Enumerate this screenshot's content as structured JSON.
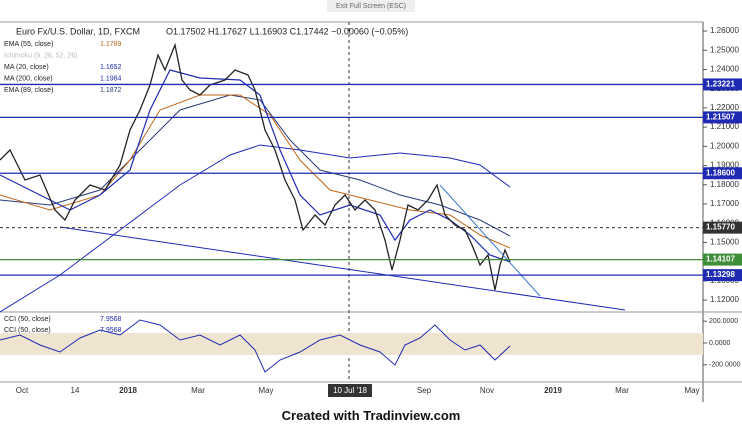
{
  "window": {
    "banner": "Exit Full Screen (ESC)"
  },
  "header": {
    "symbol": "Euro Fx/U.S. Dollar, 1D, FXCM",
    "ohlc": "O1.17502 H1.17627 L1.16903 C1.17442 −0.00060 (−0.05%)"
  },
  "indicators": [
    {
      "name": "EMA (55, close)",
      "value": "1.1789",
      "color": "#c0661a"
    },
    {
      "name": "Ichimoku (9, 26, 52, 26)",
      "color": "#b0b0b0"
    },
    {
      "name": "MA (20, close)",
      "value": "1.1652",
      "color": "#1f2bb5"
    },
    {
      "name": "MA (200, close)",
      "value": "1.1984",
      "color": "#1f2bb5"
    },
    {
      "name": "EMA (89, close)",
      "value": "1.1872",
      "color": "#2a3a7a"
    }
  ],
  "price_axis": {
    "ylim": [
      1.1138,
      1.2647
    ],
    "yticks": [
      {
        "value": 1.26,
        "label": "1.26000"
      },
      {
        "value": 1.25,
        "label": "1.25000"
      },
      {
        "value": 1.24,
        "label": "1.24000"
      },
      {
        "value": 1.23,
        "label": "1.23000"
      },
      {
        "value": 1.22,
        "label": "1.22000"
      },
      {
        "value": 1.21,
        "label": "1.21000"
      },
      {
        "value": 1.2,
        "label": "1.20000"
      },
      {
        "value": 1.19,
        "label": "1.19000"
      },
      {
        "value": 1.18,
        "label": "1.18000"
      },
      {
        "value": 1.17,
        "label": "1.17000"
      },
      {
        "value": 1.16,
        "label": "1.16000"
      },
      {
        "value": 1.15,
        "label": "1.15000"
      },
      {
        "value": 1.14,
        "label": "1.14000"
      },
      {
        "value": 1.13,
        "label": "1.13000"
      },
      {
        "value": 1.12,
        "label": "1.12000"
      }
    ]
  },
  "levels": [
    {
      "value": 1.23221,
      "color": "#1f2bb5"
    },
    {
      "value": 1.21507,
      "color": "#1f2bb5"
    },
    {
      "value": 1.186,
      "label": "1.18600",
      "color": "#1f2bb5"
    },
    {
      "value": 1.1577,
      "label": "1.15770",
      "color": "#333333"
    },
    {
      "value": 1.14107,
      "color": "#3f8f3a"
    },
    {
      "value": 1.13298,
      "color": "#1f2bb5"
    }
  ],
  "cci": {
    "legend": [
      {
        "name": "CCI (50, close)",
        "value": "7.9568"
      },
      {
        "name": "CCI (50, close)",
        "value": "7.9568"
      }
    ],
    "ylim": [
      -358,
      284
    ],
    "yticks": [
      {
        "value": 200,
        "label": "200.0000"
      },
      {
        "value": 0,
        "label": "0.0000"
      },
      {
        "value": -200,
        "label": "-200.0000"
      }
    ]
  },
  "time_axis": {
    "labels": [
      "Oct",
      "14",
      "2018",
      "Mar",
      "May",
      "10 Jul '18",
      "Sep",
      "Nov",
      "2019",
      "Mar",
      "May"
    ]
  },
  "caption": "Created with Tradinview.com"
}
